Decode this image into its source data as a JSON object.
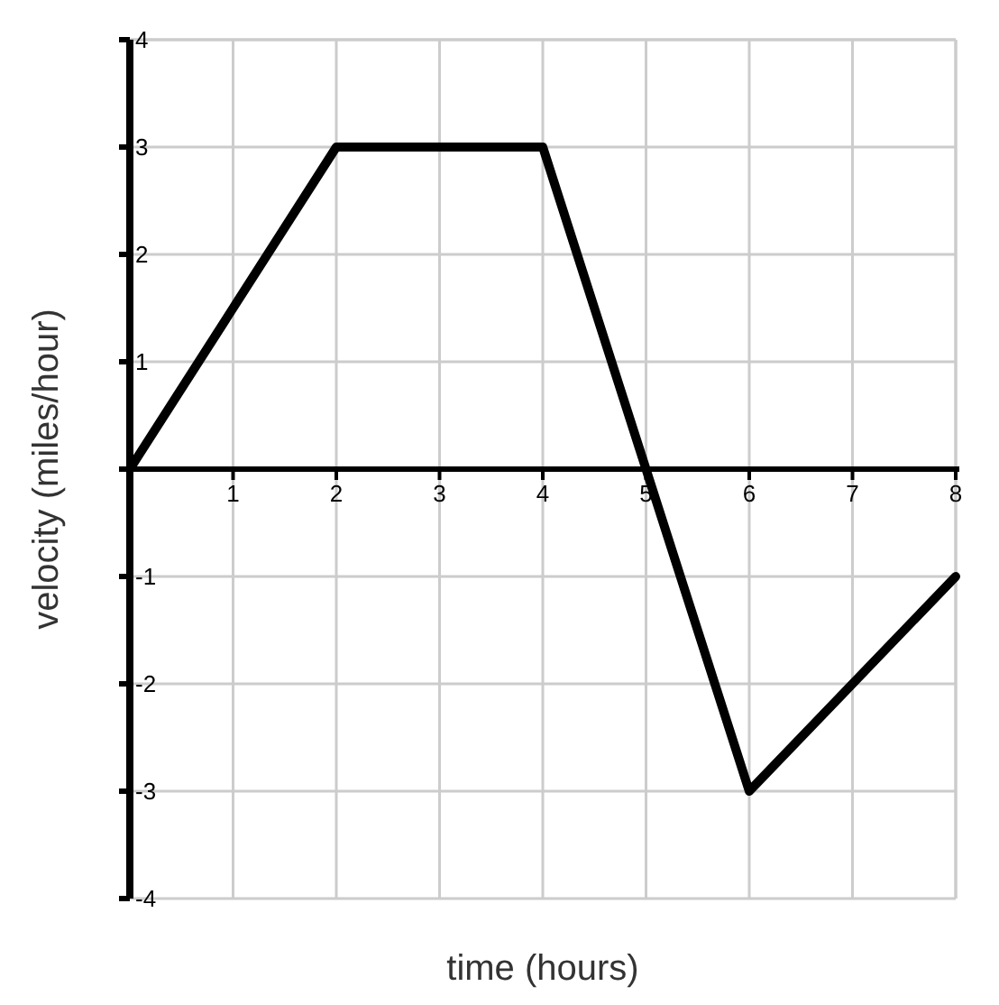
{
  "chart_data": {
    "type": "line",
    "xlabel": "time (hours)",
    "ylabel": "velocity (miles/hour)",
    "x": [
      0,
      2,
      4,
      5,
      6,
      8
    ],
    "series": [
      {
        "color": "#000000",
        "values": [
          0,
          3,
          3,
          0,
          -3,
          -1
        ]
      }
    ],
    "xlim": [
      0,
      8
    ],
    "xticks": [
      {
        "value": 0,
        "label": null
      },
      1,
      2,
      3,
      4,
      5,
      6,
      7,
      8
    ],
    "ylim": [
      -4,
      4
    ],
    "yticks": [
      -4,
      -3,
      -2,
      -1,
      {
        "value": 0,
        "label": null
      },
      1,
      2,
      3,
      4
    ],
    "grid": true,
    "marker": "none",
    "line_style": "solid"
  }
}
